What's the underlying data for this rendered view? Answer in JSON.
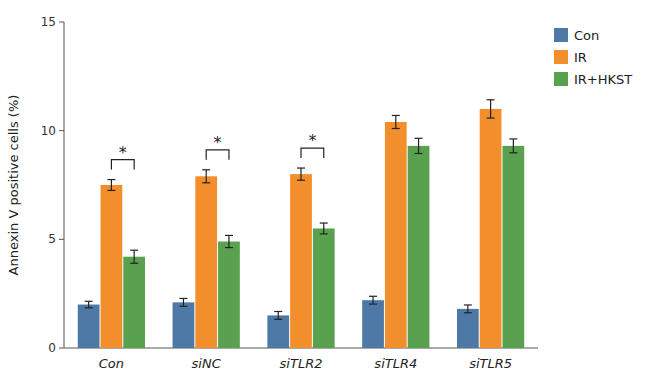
{
  "chart_data": {
    "type": "bar",
    "ylabel": "Annexin V positive cells (%)",
    "categories": [
      "Con",
      "siNC",
      "siTLR2",
      "siTLR4",
      "siTLR5"
    ],
    "series": [
      {
        "name": "Con",
        "color": "#4e79a7",
        "values": [
          2.0,
          2.1,
          1.5,
          2.2,
          1.8
        ],
        "errors": [
          0.15,
          0.18,
          0.18,
          0.18,
          0.18
        ]
      },
      {
        "name": "IR",
        "color": "#f28e2b",
        "values": [
          7.5,
          7.9,
          8.0,
          10.4,
          11.0
        ],
        "errors": [
          0.25,
          0.3,
          0.28,
          0.3,
          0.42
        ]
      },
      {
        "name": "IR+HKST",
        "color": "#59a14f",
        "values": [
          4.2,
          4.9,
          5.5,
          9.3,
          9.3
        ],
        "errors": [
          0.3,
          0.28,
          0.25,
          0.35,
          0.32
        ]
      }
    ],
    "annotations": [
      {
        "text": "*",
        "category": "Con",
        "series": [
          "IR",
          "IR+HKST"
        ]
      },
      {
        "text": "*",
        "category": "siNC",
        "series": [
          "IR",
          "IR+HKST"
        ]
      },
      {
        "text": "*",
        "category": "siTLR2",
        "series": [
          "IR",
          "IR+HKST"
        ]
      }
    ],
    "ylim": [
      0,
      15
    ],
    "yticks": [
      0,
      5,
      10,
      15
    ],
    "grid": false,
    "legend": "right"
  }
}
